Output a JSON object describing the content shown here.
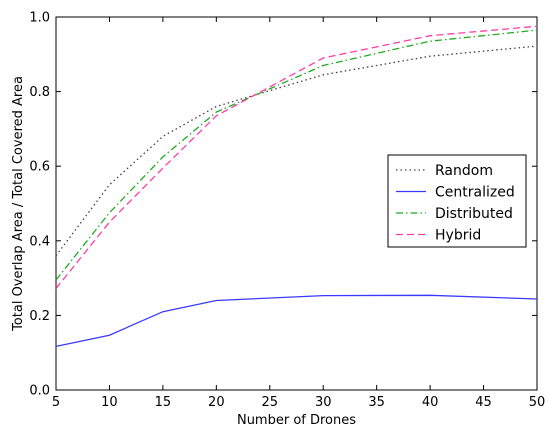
{
  "chart_data": {
    "type": "line",
    "xlabel": "Number of Drones",
    "ylabel": "Total Overlap Area / Total Covered Area",
    "xlim": [
      5,
      50
    ],
    "ylim": [
      0.0,
      1.0
    ],
    "xticks": [
      5,
      10,
      15,
      20,
      25,
      30,
      35,
      40,
      45,
      50
    ],
    "xtick_labels": [
      "5",
      "10",
      "15",
      "20",
      "25",
      "30",
      "35",
      "40",
      "45",
      "50"
    ],
    "yticks": [
      0.0,
      0.2,
      0.4,
      0.6,
      0.8,
      1.0
    ],
    "ytick_labels": [
      "0.0",
      "0.2",
      "0.4",
      "0.6",
      "0.8",
      "1.0"
    ],
    "grid": false,
    "legend_position": "center-right",
    "x": [
      5,
      10,
      15,
      20,
      30,
      40,
      50
    ],
    "series": [
      {
        "name": "Random",
        "color": "#404040",
        "dash": "dotted",
        "values": [
          0.36,
          0.55,
          0.68,
          0.76,
          0.845,
          0.895,
          0.922
        ]
      },
      {
        "name": "Centralized",
        "color": "#3a3aff",
        "dash": "solid",
        "values": [
          0.117,
          0.147,
          0.21,
          0.24,
          0.253,
          0.254,
          0.244
        ]
      },
      {
        "name": "Distributed",
        "color": "#22aa22",
        "dash": "dashdot",
        "values": [
          0.295,
          0.475,
          0.625,
          0.745,
          0.87,
          0.935,
          0.965
        ]
      },
      {
        "name": "Hybrid",
        "color": "#ff3ea5",
        "dash": "dashed",
        "values": [
          0.272,
          0.45,
          0.595,
          0.735,
          0.89,
          0.95,
          0.975
        ]
      }
    ]
  }
}
